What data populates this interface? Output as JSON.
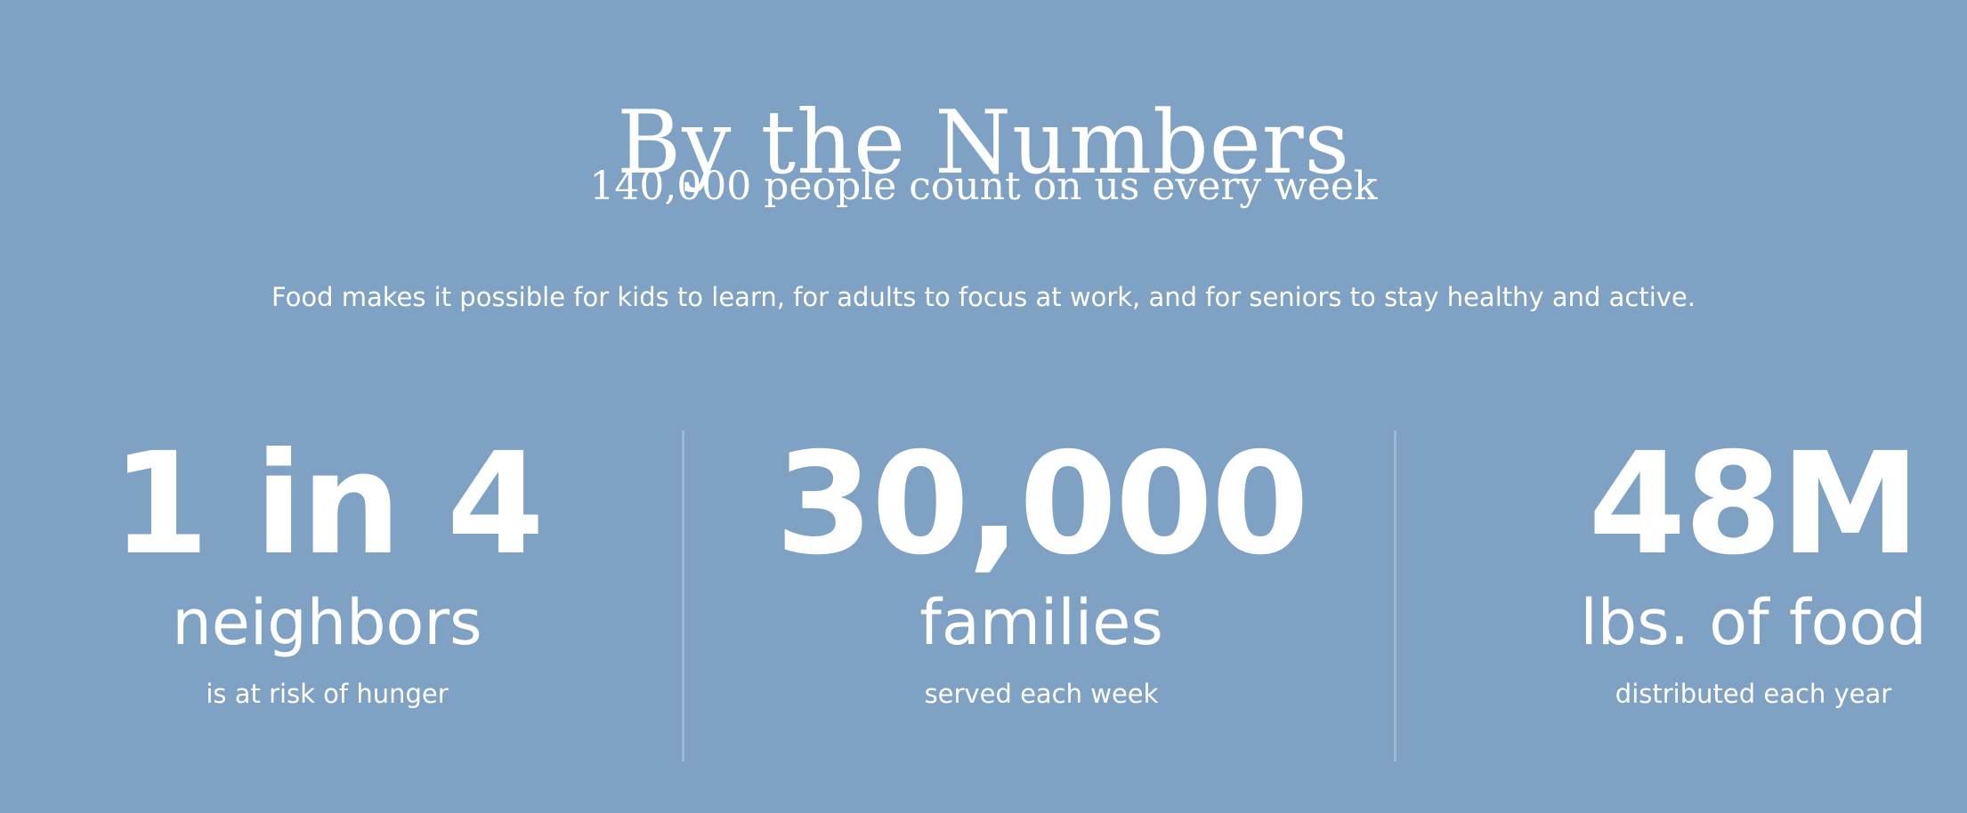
{
  "section": {
    "heading": "By the Numbers",
    "subheading": "140,000 people count on us every week",
    "intro": "Food makes it possible for kids to learn, for adults to focus at work, and for seniors to stay healthy and active."
  },
  "stats": [
    {
      "value": "1 in 4",
      "label": "neighbors",
      "caption": "is at risk of hunger"
    },
    {
      "value": "30,000",
      "label": "families",
      "caption": "served each week"
    },
    {
      "value": "48M",
      "label": "lbs. of food",
      "caption": "distributed each year"
    }
  ],
  "colors": {
    "background": "#7ea1c4",
    "text": "#ffffff",
    "divider": "rgba(255,255,255,0.25)"
  }
}
